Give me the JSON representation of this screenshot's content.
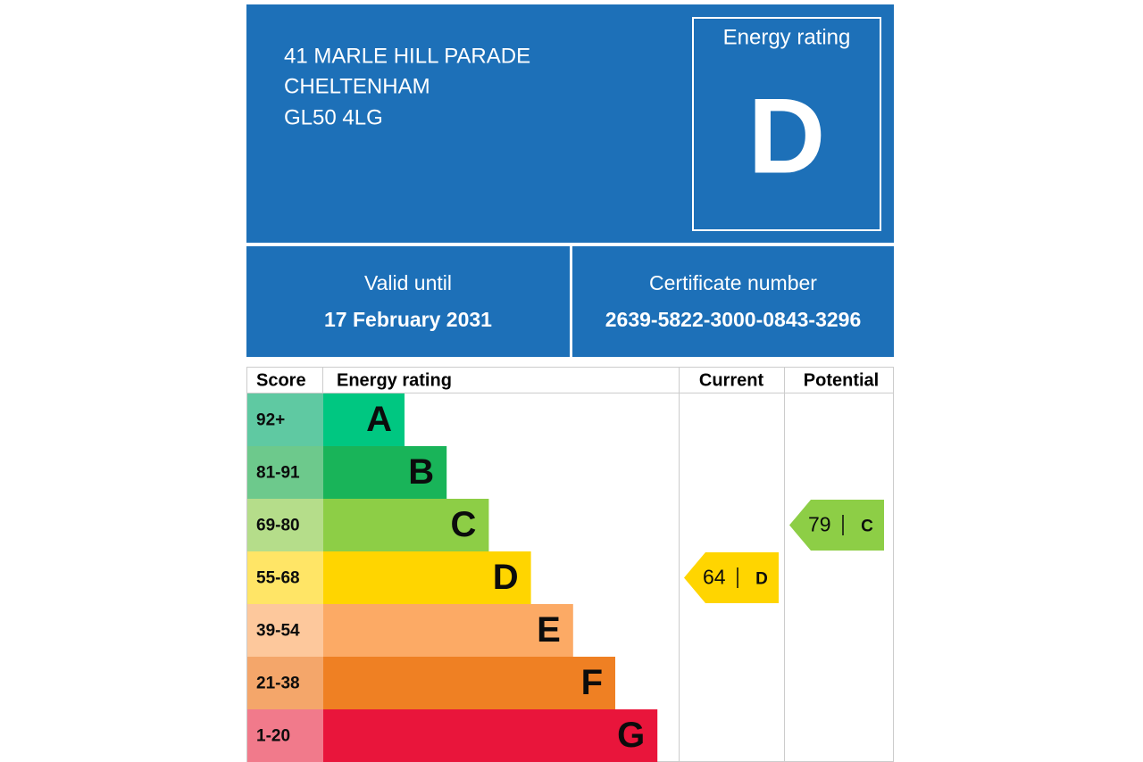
{
  "header": {
    "address_lines": [
      "41 MARLE HILL PARADE",
      "CHELTENHAM",
      "GL50 4LG"
    ],
    "rating_label": "Energy rating",
    "rating": "D"
  },
  "validity": {
    "label": "Valid until",
    "date": "17 February 2031"
  },
  "certificate": {
    "label": "Certificate number",
    "number": "2639-5822-3000-0843-3296"
  },
  "rating_table": {
    "columns": [
      "Score",
      "Energy rating",
      "Current",
      "Potential"
    ],
    "rows": [
      {
        "score": "92+",
        "band": "A"
      },
      {
        "score": "81-91",
        "band": "B"
      },
      {
        "score": "69-80",
        "band": "C"
      },
      {
        "score": "55-68",
        "band": "D"
      },
      {
        "score": "39-54",
        "band": "E"
      },
      {
        "score": "21-38",
        "band": "F"
      },
      {
        "score": "1-20",
        "band": "G"
      }
    ],
    "current": {
      "score": 64,
      "band": "D"
    },
    "potential": {
      "score": 79,
      "band": "C"
    }
  }
}
